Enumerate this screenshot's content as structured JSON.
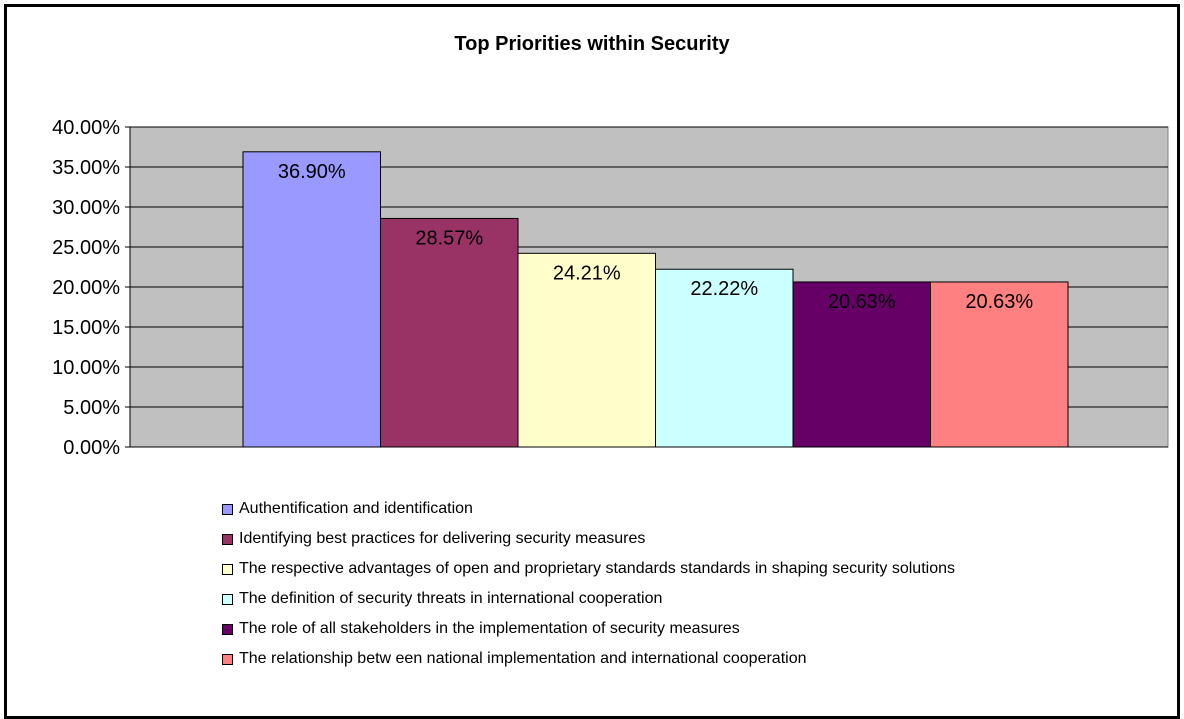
{
  "chart_data": {
    "type": "bar",
    "title": "Top Priorities within Security",
    "xlabel": "",
    "ylabel": "",
    "ylim": [
      0,
      0.4
    ],
    "y_ticks": [
      "0.00%",
      "5.00%",
      "10.00%",
      "15.00%",
      "20.00%",
      "25.00%",
      "30.00%",
      "35.00%",
      "40.00%"
    ],
    "grid": true,
    "legend_position": "bottom",
    "plot_background": "#c0c0c0",
    "series": [
      {
        "name": "Authentification and identification",
        "value": 0.369,
        "label": "36.90%",
        "color": "#9999ff"
      },
      {
        "name": "Identifying best practices for delivering security measures",
        "value": 0.2857,
        "label": "28.57%",
        "color": "#993366"
      },
      {
        "name": "The respective advantages of open and proprietary standards standards in shaping security solutions",
        "value": 0.2421,
        "label": "24.21%",
        "color": "#ffffcc"
      },
      {
        "name": "The definition of security threats in international cooperation",
        "value": 0.2222,
        "label": "22.22%",
        "color": "#ccffff"
      },
      {
        "name": "The role of all stakeholders in the implementation of security measures",
        "value": 0.2063,
        "label": "20.63%",
        "color": "#660066"
      },
      {
        "name": "The relationship betw een national implementation and international cooperation",
        "value": 0.2063,
        "label": "20.63%",
        "color": "#ff8080"
      }
    ]
  }
}
